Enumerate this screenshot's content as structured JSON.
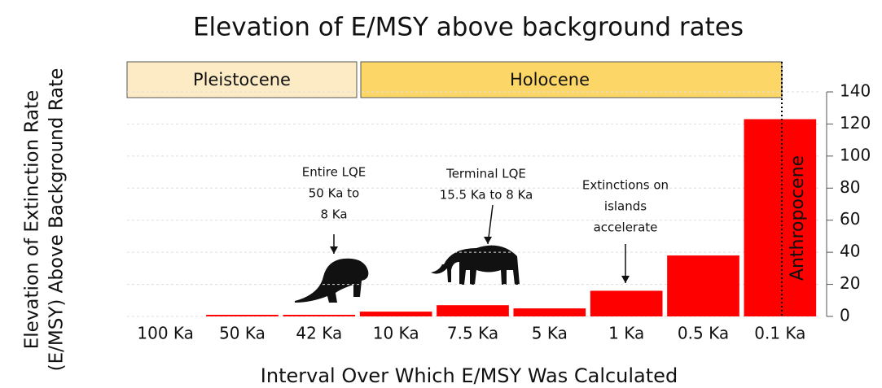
{
  "chart_data": {
    "type": "bar",
    "title": "Elevation of E/MSY above background rates",
    "xlabel": "Interval Over Which E/MSY Was Calculated",
    "ylabel": [
      "Elevation of Extinction Rate",
      "(E/MSY) Above Background Rate"
    ],
    "categories": [
      "100 Ka",
      "50 Ka",
      "42 Ka",
      "10 Ka",
      "7.5 Ka",
      "5 Ka",
      "1 Ka",
      "0.5 Ka",
      "0.1 Ka"
    ],
    "values": [
      0,
      1,
      1,
      3,
      7,
      5,
      16,
      38,
      123
    ],
    "color": "#ff0000",
    "ylim": [
      0,
      140
    ],
    "yticks": [
      0,
      20,
      40,
      60,
      80,
      100,
      120,
      140
    ],
    "grid": true,
    "periods": [
      "Pleistocene",
      "Holocene",
      "Anthropocene"
    ],
    "annotations": [
      [
        "Entire LQE",
        "50 Ka to",
        "8 Ka"
      ],
      [
        "Terminal LQE",
        "15.5 Ka to 8 Ka"
      ],
      [
        "Extinctions on",
        "islands",
        "accelerate"
      ]
    ]
  }
}
